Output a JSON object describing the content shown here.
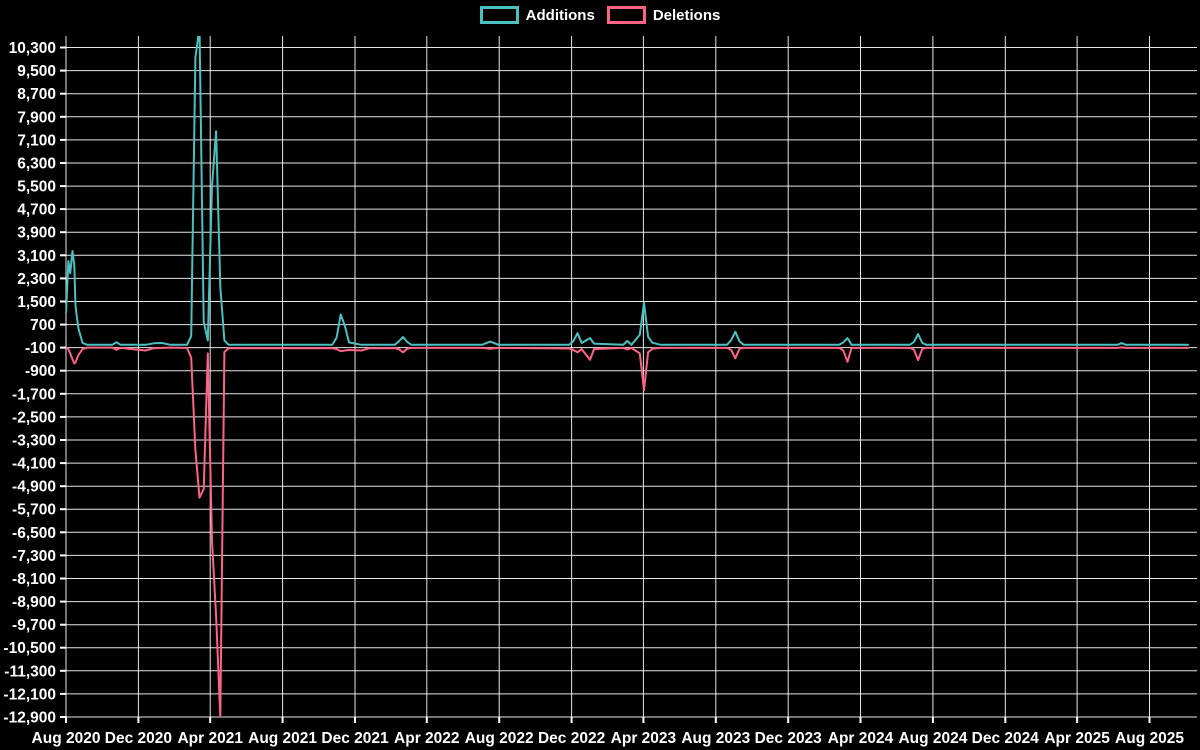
{
  "page": {
    "background": "#000000",
    "text_color": "#ffffff",
    "grid_color": "#ffffff"
  },
  "chart_data": {
    "type": "line",
    "title": "",
    "legend_position": "top",
    "grid": true,
    "series": [
      {
        "name": "Additions",
        "color": "#4bc0c0"
      },
      {
        "name": "Deletions",
        "color": "#ff6384"
      }
    ],
    "x_domain": [
      "2020-08-01",
      "2025-10-20"
    ],
    "ylim": [
      -12900,
      10700
    ],
    "y_ticks": [
      10300,
      9500,
      8700,
      7900,
      7100,
      6300,
      5500,
      4700,
      3900,
      3100,
      2300,
      1500,
      700,
      -100,
      -900,
      -1700,
      -2500,
      -3300,
      -4100,
      -4900,
      -5700,
      -6500,
      -7300,
      -8100,
      -8900,
      -9700,
      -10500,
      -11300,
      -12100,
      -12900
    ],
    "x_ticks": [
      {
        "date": "2020-08-01",
        "label": "Aug 2020"
      },
      {
        "date": "2020-12-01",
        "label": "Dec 2020"
      },
      {
        "date": "2021-04-01",
        "label": "Apr 2021"
      },
      {
        "date": "2021-08-01",
        "label": "Aug 2021"
      },
      {
        "date": "2021-12-01",
        "label": "Dec 2021"
      },
      {
        "date": "2022-04-01",
        "label": "Apr 2022"
      },
      {
        "date": "2022-08-01",
        "label": "Aug 2022"
      },
      {
        "date": "2022-12-01",
        "label": "Dec 2022"
      },
      {
        "date": "2023-04-01",
        "label": "Apr 2023"
      },
      {
        "date": "2023-08-01",
        "label": "Aug 2023"
      },
      {
        "date": "2023-12-01",
        "label": "Dec 2023"
      },
      {
        "date": "2024-04-01",
        "label": "Apr 2024"
      },
      {
        "date": "2024-08-01",
        "label": "Aug 2024"
      },
      {
        "date": "2024-12-01",
        "label": "Dec 2024"
      },
      {
        "date": "2025-04-01",
        "label": "Apr 2025"
      },
      {
        "date": "2025-08-01",
        "label": "Aug 2025"
      }
    ],
    "points_format": [
      "date",
      "additions",
      "deletions_negative"
    ],
    "points": [
      [
        "2020-08-01",
        1100,
        -100
      ],
      [
        "2020-08-05",
        2900,
        -150
      ],
      [
        "2020-08-08",
        2480,
        -300
      ],
      [
        "2020-08-12",
        3250,
        -500
      ],
      [
        "2020-08-15",
        2750,
        -650
      ],
      [
        "2020-08-17",
        1370,
        -620
      ],
      [
        "2020-08-19",
        1000,
        -500
      ],
      [
        "2020-08-22",
        550,
        -350
      ],
      [
        "2020-08-29",
        60,
        -150
      ],
      [
        "2020-09-06",
        0,
        -100
      ],
      [
        "2020-10-18",
        0,
        -100
      ],
      [
        "2020-10-25",
        90,
        -170
      ],
      [
        "2020-11-01",
        0,
        -110
      ],
      [
        "2020-12-13",
        0,
        -200
      ],
      [
        "2020-12-27",
        50,
        -120
      ],
      [
        "2021-01-10",
        60,
        -110
      ],
      [
        "2021-01-24",
        0,
        -100
      ],
      [
        "2021-02-21",
        0,
        -110
      ],
      [
        "2021-02-28",
        300,
        -450
      ],
      [
        "2021-03-07",
        9950,
        -3650
      ],
      [
        "2021-03-14",
        11000,
        -5300
      ],
      [
        "2021-03-21",
        800,
        -5000
      ],
      [
        "2021-03-28",
        150,
        -300
      ],
      [
        "2021-04-04",
        5500,
        -6800
      ],
      [
        "2021-04-11",
        7400,
        -9400
      ],
      [
        "2021-04-18",
        2000,
        -12900
      ],
      [
        "2021-04-25",
        150,
        -250
      ],
      [
        "2021-05-02",
        0,
        -120
      ],
      [
        "2021-10-24",
        0,
        -120
      ],
      [
        "2021-10-31",
        250,
        -150
      ],
      [
        "2021-11-07",
        1050,
        -220
      ],
      [
        "2021-11-14",
        650,
        -200
      ],
      [
        "2021-11-21",
        80,
        -180
      ],
      [
        "2021-12-12",
        0,
        -200
      ],
      [
        "2021-12-26",
        0,
        -120
      ],
      [
        "2022-02-06",
        0,
        -120
      ],
      [
        "2022-02-13",
        120,
        -150
      ],
      [
        "2022-02-20",
        270,
        -260
      ],
      [
        "2022-02-27",
        100,
        -140
      ],
      [
        "2022-03-06",
        0,
        -110
      ],
      [
        "2022-07-03",
        0,
        -110
      ],
      [
        "2022-07-17",
        110,
        -140
      ],
      [
        "2022-07-31",
        0,
        -110
      ],
      [
        "2022-11-27",
        0,
        -130
      ],
      [
        "2022-12-04",
        120,
        -180
      ],
      [
        "2022-12-11",
        400,
        -260
      ],
      [
        "2022-12-18",
        60,
        -150
      ],
      [
        "2023-01-01",
        230,
        -520
      ],
      [
        "2023-01-08",
        40,
        -150
      ],
      [
        "2023-02-26",
        0,
        -110
      ],
      [
        "2023-03-05",
        130,
        -160
      ],
      [
        "2023-03-12",
        0,
        -110
      ],
      [
        "2023-03-26",
        350,
        -300
      ],
      [
        "2023-04-02",
        1450,
        -1570
      ],
      [
        "2023-04-09",
        280,
        -260
      ],
      [
        "2023-04-16",
        70,
        -140
      ],
      [
        "2023-04-30",
        0,
        -110
      ],
      [
        "2023-08-20",
        0,
        -110
      ],
      [
        "2023-08-27",
        160,
        -180
      ],
      [
        "2023-09-03",
        450,
        -470
      ],
      [
        "2023-09-10",
        120,
        -140
      ],
      [
        "2023-09-17",
        0,
        -110
      ],
      [
        "2024-02-25",
        0,
        -110
      ],
      [
        "2024-03-03",
        80,
        -200
      ],
      [
        "2024-03-10",
        230,
        -590
      ],
      [
        "2024-03-17",
        0,
        -110
      ],
      [
        "2024-06-23",
        0,
        -110
      ],
      [
        "2024-06-30",
        100,
        -170
      ],
      [
        "2024-07-07",
        370,
        -530
      ],
      [
        "2024-07-14",
        60,
        -140
      ],
      [
        "2024-07-21",
        0,
        -110
      ],
      [
        "2025-06-08",
        0,
        -110
      ],
      [
        "2025-06-15",
        60,
        -90
      ],
      [
        "2025-06-22",
        0,
        -110
      ],
      [
        "2025-10-05",
        0,
        -110
      ]
    ]
  }
}
